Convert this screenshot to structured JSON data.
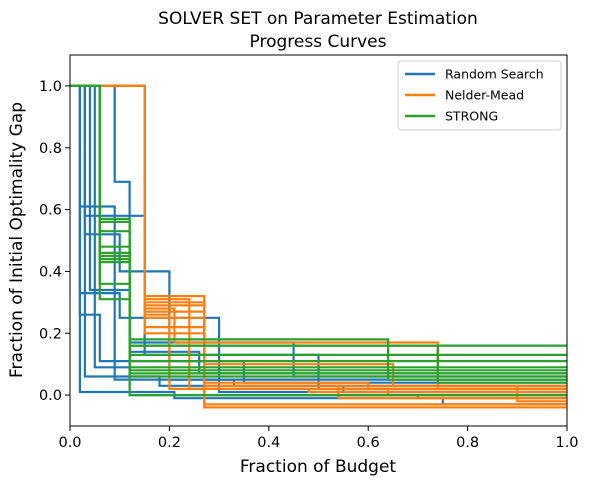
{
  "chart_data": {
    "type": "line",
    "title": [
      "SOLVER SET on Parameter Estimation",
      "Progress Curves"
    ],
    "xlabel": "Fraction of Budget",
    "ylabel": "Fraction of Initial Optimality Gap",
    "xlim": [
      0,
      1
    ],
    "ylim": [
      -0.1,
      1.1
    ],
    "x_ticks": [
      "0.0",
      "0.2",
      "0.4",
      "0.6",
      "0.8",
      "1.0"
    ],
    "y_ticks": [
      "0.0",
      "0.2",
      "0.4",
      "0.6",
      "0.8",
      "1.0"
    ],
    "grid": false,
    "legend_position": "top-right",
    "colors": {
      "Random Search": "#1f77b4",
      "Nelder-Mead": "#ff7f0e",
      "STRONG": "#2ca02c"
    },
    "series": [
      {
        "name": "Random Search",
        "curves": [
          {
            "x": [
              0,
              0.02,
              0.02,
              0.09,
              0.09,
              0.33,
              0.33,
              1
            ],
            "y": [
              1,
              1,
              0.61,
              0.61,
              0.05,
              0.05,
              0.03,
              0.03
            ]
          },
          {
            "x": [
              0,
              0.03,
              0.03,
              0.1,
              0.1,
              0.2,
              0.2,
              1
            ],
            "y": [
              1,
              1,
              0.52,
              0.52,
              0.4,
              0.4,
              0.05,
              0.05
            ]
          },
          {
            "x": [
              0,
              0.04,
              0.04,
              0.12,
              0.12,
              0.45,
              0.45,
              1
            ],
            "y": [
              1,
              1,
              0.34,
              0.34,
              0.17,
              0.17,
              0.06,
              0.06
            ]
          },
          {
            "x": [
              0,
              0.05,
              0.05,
              0.09,
              0.09,
              0.12,
              0.12,
              1
            ],
            "y": [
              1,
              1,
              0.09,
              0.09,
              0.09,
              0.09,
              0.0,
              0.0
            ]
          },
          {
            "x": [
              0,
              0.09,
              0.09,
              0.12,
              0.12,
              0.26,
              0.26,
              1
            ],
            "y": [
              1,
              1,
              0.69,
              0.69,
              0.14,
              0.14,
              0.07,
              0.07
            ]
          },
          {
            "x": [
              0,
              0.02,
              0.02,
              0.06,
              0.06,
              0.35,
              0.35,
              1
            ],
            "y": [
              1,
              1,
              0.26,
              0.26,
              0.11,
              0.11,
              0.04,
              0.04
            ]
          },
          {
            "x": [
              0,
              0.03,
              0.03,
              0.15,
              0.15,
              0.5,
              0.5,
              1
            ],
            "y": [
              1,
              1,
              0.58,
              0.58,
              0.13,
              0.13,
              0.02,
              0.02
            ]
          },
          {
            "x": [
              0,
              0.02,
              0.02,
              0.1,
              0.1,
              0.3,
              0.3,
              1
            ],
            "y": [
              1,
              1,
              0.33,
              0.33,
              0.25,
              0.25,
              0.01,
              0.01
            ]
          },
          {
            "x": [
              0,
              0.03,
              0.03,
              0.18,
              0.18,
              0.55,
              0.55,
              1
            ],
            "y": [
              1,
              1,
              0.06,
              0.06,
              0.03,
              0.03,
              0.01,
              0.01
            ]
          },
          {
            "x": [
              0,
              0.02,
              0.02,
              0.21,
              0.21,
              0.75,
              0.75,
              1
            ],
            "y": [
              1,
              1,
              0.01,
              0.01,
              -0.01,
              -0.01,
              -0.03,
              -0.03
            ]
          }
        ]
      },
      {
        "name": "Nelder-Mead",
        "curves": [
          {
            "x": [
              0,
              0.15,
              0.15,
              0.27,
              0.27,
              0.54,
              0.54,
              1
            ],
            "y": [
              1,
              1,
              0.3,
              0.3,
              0.03,
              0.03,
              -0.01,
              -0.01
            ]
          },
          {
            "x": [
              0,
              0.15,
              0.15,
              0.24,
              0.24,
              0.64,
              0.64,
              1
            ],
            "y": [
              1,
              1,
              0.31,
              0.31,
              0.02,
              0.02,
              0.0,
              0.0
            ]
          },
          {
            "x": [
              0,
              0.15,
              0.15,
              0.27,
              0.27,
              0.84,
              0.84,
              1
            ],
            "y": [
              1,
              1,
              0.27,
              0.27,
              -0.04,
              -0.04,
              -0.04,
              -0.04
            ]
          },
          {
            "x": [
              0,
              0.15,
              0.15,
              0.2,
              0.2,
              0.48,
              0.48,
              1
            ],
            "y": [
              1,
              1,
              0.26,
              0.26,
              0.02,
              0.02,
              0.01,
              0.01
            ]
          },
          {
            "x": [
              0,
              0.15,
              0.15,
              0.27,
              0.27,
              0.65,
              0.65,
              1
            ],
            "y": [
              1,
              1,
              0.32,
              0.32,
              0.1,
              0.1,
              0.03,
              0.03
            ]
          },
          {
            "x": [
              0,
              0.15,
              0.15,
              0.21,
              0.21,
              0.74,
              0.74,
              1
            ],
            "y": [
              1,
              1,
              0.28,
              0.28,
              0.17,
              0.17,
              0.02,
              0.02
            ]
          },
          {
            "x": [
              0,
              0.15,
              0.15,
              0.27,
              0.27,
              0.9,
              0.9,
              1
            ],
            "y": [
              1,
              1,
              0.29,
              0.29,
              0.03,
              0.03,
              -0.02,
              -0.02
            ]
          },
          {
            "x": [
              0,
              0.15,
              0.15,
              0.27,
              0.27,
              0.83,
              0.83,
              1
            ],
            "y": [
              1,
              1,
              0.25,
              0.25,
              -0.03,
              -0.03,
              -0.03,
              -0.03
            ]
          },
          {
            "x": [
              0,
              0.15,
              0.15,
              0.27,
              0.27,
              0.6,
              0.6,
              1
            ],
            "y": [
              1,
              1,
              0.22,
              0.22,
              0.04,
              0.04,
              0.02,
              0.02
            ]
          },
          {
            "x": [
              0,
              0.15,
              0.15,
              0.27,
              0.27,
              0.7,
              0.7,
              1
            ],
            "y": [
              1,
              1,
              0.2,
              0.2,
              0.0,
              0.0,
              -0.01,
              -0.01
            ]
          }
        ]
      },
      {
        "name": "STRONG",
        "curves": [
          {
            "x": [
              0,
              0.06,
              0.06,
              0.12,
              0.12,
              1
            ],
            "y": [
              1,
              1,
              0.56,
              0.56,
              0.16,
              0.16
            ]
          },
          {
            "x": [
              0,
              0.06,
              0.06,
              0.12,
              0.12,
              1
            ],
            "y": [
              1,
              1,
              0.48,
              0.48,
              0.13,
              0.13
            ]
          },
          {
            "x": [
              0,
              0.06,
              0.06,
              0.12,
              0.12,
              1
            ],
            "y": [
              1,
              1,
              0.46,
              0.46,
              0.11,
              0.11
            ]
          },
          {
            "x": [
              0,
              0.06,
              0.06,
              0.12,
              0.12,
              1
            ],
            "y": [
              1,
              1,
              0.44,
              0.44,
              0.09,
              0.09
            ]
          },
          {
            "x": [
              0,
              0.06,
              0.06,
              0.12,
              0.12,
              1
            ],
            "y": [
              1,
              1,
              0.45,
              0.45,
              0.08,
              0.08
            ]
          },
          {
            "x": [
              0,
              0.06,
              0.06,
              0.12,
              0.12,
              1
            ],
            "y": [
              1,
              1,
              0.31,
              0.31,
              0.07,
              0.07
            ]
          },
          {
            "x": [
              0,
              0.06,
              0.06,
              0.12,
              0.12,
              1
            ],
            "y": [
              1,
              1,
              0.36,
              0.36,
              0.06,
              0.06
            ]
          },
          {
            "x": [
              0,
              0.06,
              0.06,
              0.12,
              0.12,
              0.64,
              0.64,
              1
            ],
            "y": [
              1,
              1,
              0.43,
              0.43,
              0.18,
              0.18,
              0.05,
              0.05
            ]
          },
          {
            "x": [
              0,
              0.06,
              0.06,
              0.12,
              0.12,
              0.74,
              0.74,
              1
            ],
            "y": [
              1,
              1,
              0.53,
              0.53,
              0.16,
              0.16,
              0.04,
              0.04
            ]
          },
          {
            "x": [
              0,
              0.06,
              0.06,
              0.12,
              0.12,
              1
            ],
            "y": [
              1,
              1,
              0.57,
              0.57,
              0.0,
              0.0
            ]
          }
        ]
      }
    ]
  }
}
